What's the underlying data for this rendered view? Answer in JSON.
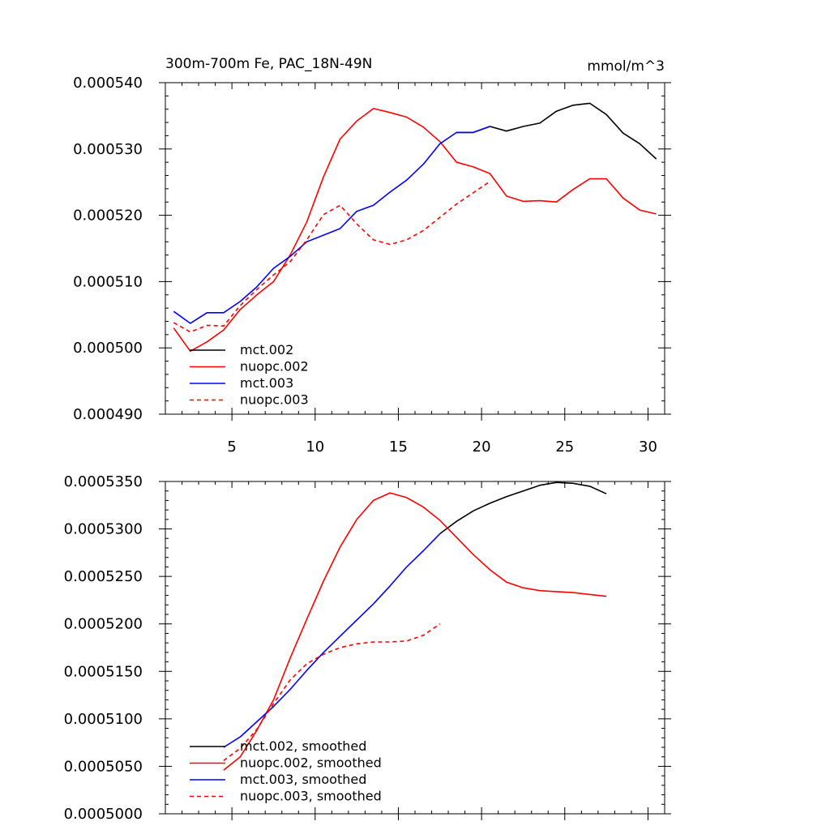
{
  "chart_data": [
    {
      "type": "line",
      "title": "300m-700m Fe, PAC_18N-49N",
      "units": "mmol/m^3",
      "xlabel": "",
      "ylabel": "",
      "xlim": [
        1,
        31
      ],
      "ylim": [
        0.00049,
        0.00054
      ],
      "x_major_ticks": [
        5,
        10,
        15,
        20,
        25,
        30
      ],
      "x_tick_labels": [
        "5",
        "10",
        "15",
        "20",
        "25",
        "30"
      ],
      "y_major_ticks": [
        0.00049,
        0.0005,
        0.00051,
        0.00052,
        0.00053,
        0.00054
      ],
      "y_tick_labels": [
        "0.000490",
        "0.000500",
        "0.000510",
        "0.000520",
        "0.000530",
        "0.000540"
      ],
      "grid": false,
      "legend_position": "bottom-left",
      "series": [
        {
          "name": "mct.002",
          "color": "#000000",
          "dash": "solid",
          "x": [
            18.5,
            19.5,
            20.5,
            21.5,
            22.5,
            23.5,
            24.5,
            25.5,
            26.5,
            27.5,
            28.5,
            29.5,
            30.5
          ],
          "y": [
            0.0005325,
            0.0005325,
            0.0005334,
            0.0005327,
            0.0005334,
            0.0005339,
            0.0005357,
            0.0005366,
            0.0005369,
            0.0005352,
            0.0005324,
            0.0005308,
            0.0005285
          ]
        },
        {
          "name": "nuopc.002",
          "color": "#ff0000",
          "dash": "solid",
          "x": [
            1.5,
            2.5,
            3.5,
            4.5,
            5.5,
            6.5,
            7.5,
            8.5,
            9.5,
            10.5,
            11.5,
            12.5,
            13.5,
            14.5,
            15.5,
            16.5,
            17.5,
            18.5,
            19.5,
            20.5,
            21.5,
            22.5,
            23.5,
            24.5,
            25.5,
            26.5,
            27.5,
            28.5,
            29.5,
            30.5
          ],
          "y": [
            0.000503,
            0.0004995,
            0.0005009,
            0.0005027,
            0.0005058,
            0.000508,
            0.00051,
            0.000514,
            0.000519,
            0.0005258,
            0.0005315,
            0.0005342,
            0.0005361,
            0.0005355,
            0.0005348,
            0.0005333,
            0.0005311,
            0.000528,
            0.0005273,
            0.0005263,
            0.0005229,
            0.0005221,
            0.0005222,
            0.000522,
            0.0005239,
            0.0005255,
            0.0005255,
            0.0005226,
            0.0005208,
            0.0005202
          ]
        },
        {
          "name": "mct.003",
          "color": "#0000ff",
          "dash": "solid",
          "x": [
            1.5,
            2.5,
            3.5,
            4.5,
            5.5,
            6.5,
            7.5,
            8.5,
            9.5,
            10.5,
            11.5,
            12.5,
            13.5,
            14.5,
            15.5,
            16.5,
            17.5,
            18.5,
            19.5,
            20.5
          ],
          "y": [
            0.0005055,
            0.0005037,
            0.0005053,
            0.0005053,
            0.000507,
            0.0005092,
            0.000512,
            0.0005138,
            0.000516,
            0.000517,
            0.000518,
            0.0005206,
            0.0005215,
            0.0005235,
            0.0005253,
            0.0005277,
            0.0005308,
            0.0005325,
            0.0005325,
            0.0005334
          ]
        },
        {
          "name": "nuopc.003",
          "color": "#ff0000",
          "dash": "dashed",
          "x": [
            1.5,
            2.5,
            3.5,
            4.5,
            5.5,
            6.5,
            7.5,
            8.5,
            9.5,
            10.5,
            11.5,
            12.5,
            13.5,
            14.5,
            15.5,
            16.5,
            17.5,
            18.5,
            19.5,
            20.5
          ],
          "y": [
            0.0005038,
            0.0005024,
            0.0005034,
            0.0005033,
            0.0005064,
            0.0005088,
            0.000511,
            0.000513,
            0.0005163,
            0.0005201,
            0.0005215,
            0.0005187,
            0.0005163,
            0.0005156,
            0.0005163,
            0.0005177,
            0.0005197,
            0.0005217,
            0.0005234,
            0.0005251
          ]
        }
      ]
    },
    {
      "type": "line",
      "title": "",
      "xlabel": "",
      "ylabel": "",
      "xlim": [
        1,
        31
      ],
      "ylim": [
        0.0005,
        0.000535
      ],
      "x_major_ticks": [
        5,
        10,
        15,
        20,
        25,
        30
      ],
      "y_major_ticks": [
        0.0005,
        0.000505,
        0.00051,
        0.000515,
        0.00052,
        0.000525,
        0.00053,
        0.000535
      ],
      "y_tick_labels": [
        "0.0005000",
        "0.0005050",
        "0.0005100",
        "0.0005150",
        "0.0005200",
        "0.0005250",
        "0.0005300",
        "0.0005350"
      ],
      "grid": false,
      "legend_position": "bottom-left",
      "series": [
        {
          "name": "mct.002, smoothed",
          "color": "#000000",
          "dash": "solid",
          "x": [
            17.5,
            18.5,
            19.5,
            20.5,
            21.5,
            22.5,
            23.5,
            24.5,
            25.5,
            26.5,
            27.5
          ],
          "y": [
            0.0005295,
            0.0005308,
            0.0005319,
            0.0005327,
            0.0005334,
            0.000534,
            0.0005346,
            0.0005349,
            0.0005348,
            0.0005345,
            0.0005337
          ]
        },
        {
          "name": "nuopc.002, smoothed",
          "color": "#ff0000",
          "dash": "solid",
          "x": [
            4.5,
            5.5,
            6.5,
            7.5,
            8.5,
            9.5,
            10.5,
            11.5,
            12.5,
            13.5,
            14.5,
            15.5,
            16.5,
            17.5,
            18.5,
            19.5,
            20.5,
            21.5,
            22.5,
            23.5,
            24.5,
            25.5,
            26.5,
            27.5
          ],
          "y": [
            0.0005046,
            0.000506,
            0.0005088,
            0.000512,
            0.0005164,
            0.0005205,
            0.0005245,
            0.0005281,
            0.000531,
            0.000533,
            0.0005338,
            0.0005333,
            0.0005323,
            0.0005309,
            0.0005291,
            0.0005273,
            0.0005257,
            0.0005244,
            0.0005238,
            0.0005235,
            0.0005234,
            0.0005233,
            0.0005231,
            0.0005229
          ]
        },
        {
          "name": "mct.003, smoothed",
          "color": "#0000ff",
          "dash": "solid",
          "x": [
            4.5,
            5.5,
            6.5,
            7.5,
            8.5,
            9.5,
            10.5,
            11.5,
            12.5,
            13.5,
            14.5,
            15.5,
            16.5,
            17.5
          ],
          "y": [
            0.000507,
            0.0005081,
            0.0005097,
            0.0005113,
            0.0005131,
            0.0005151,
            0.000517,
            0.0005187,
            0.0005204,
            0.0005221,
            0.000524,
            0.000526,
            0.0005277,
            0.0005295
          ]
        },
        {
          "name": "nuopc.003, smoothed",
          "color": "#ff0000",
          "dash": "dashed",
          "x": [
            4.5,
            5.5,
            6.5,
            7.5,
            8.5,
            9.5,
            10.5,
            11.5,
            12.5,
            13.5,
            14.5,
            15.5,
            16.5,
            17.5
          ],
          "y": [
            0.0005056,
            0.0005069,
            0.0005089,
            0.0005116,
            0.0005141,
            0.0005158,
            0.0005168,
            0.0005175,
            0.0005179,
            0.0005181,
            0.0005181,
            0.0005182,
            0.0005188,
            0.00052
          ]
        }
      ]
    }
  ]
}
